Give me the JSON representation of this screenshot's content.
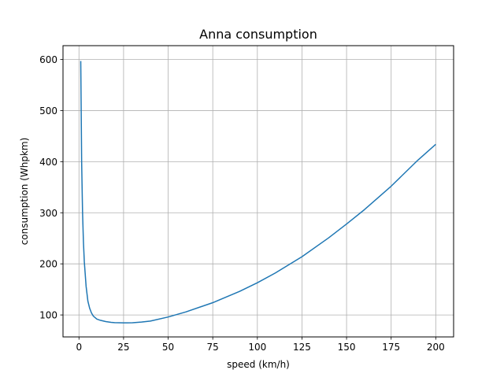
{
  "chart_data": {
    "type": "line",
    "title": "Anna consumption",
    "xlabel": "speed (km/h)",
    "ylabel": "consumption (Whpkm)",
    "xlim": [
      -8.95,
      210.0
    ],
    "ylim": [
      57.0,
      627.0
    ],
    "grid": true,
    "x_ticks": [
      0,
      25,
      50,
      75,
      100,
      125,
      150,
      175,
      200
    ],
    "y_ticks": [
      100,
      200,
      300,
      400,
      500,
      600
    ],
    "x_tick_labels": [
      "0",
      "25",
      "50",
      "75",
      "100",
      "125",
      "150",
      "175",
      "200"
    ],
    "y_tick_labels": [
      "100",
      "200",
      "300",
      "400",
      "500",
      "600"
    ],
    "series": [
      {
        "color": "#1f77b4",
        "x": [
          1,
          1.5,
          2,
          2.5,
          3,
          4,
          5,
          6,
          7,
          8,
          10,
          12,
          15,
          18,
          20,
          25,
          27,
          30,
          35,
          40,
          50,
          60,
          75,
          90,
          100,
          110,
          125,
          140,
          150,
          160,
          175,
          190,
          200
        ],
        "y": [
          597,
          400,
          302,
          243,
          204,
          156,
          127,
          113,
          104,
          98,
          92,
          89.5,
          87,
          85.5,
          85,
          84.6,
          84.5,
          84.8,
          86,
          88,
          96,
          106,
          124,
          146,
          163,
          182,
          214,
          251,
          278,
          306,
          352,
          403,
          434
        ]
      }
    ]
  }
}
